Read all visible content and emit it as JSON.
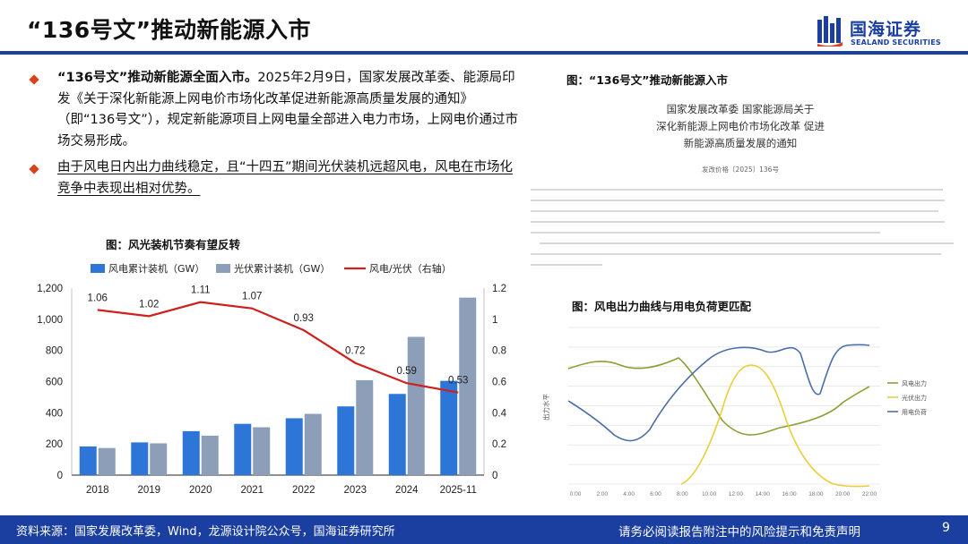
{
  "slide": {
    "title": "“136号文”推动新能源入市",
    "page_number": "9"
  },
  "logo": {
    "cn": "国海证券",
    "en": "SEALAND SECURITIES"
  },
  "bullets": [
    {
      "bold": "“136号文”推动新能源全面入市。",
      "text": "2025年2月9日，国家发展改革委、能源局印发《关于深化新能源上网电价市场化改革促进新能源高质量发展的通知》（即“136号文”），规定新能源项目上网电量全部进入电力市场，上网电价通过市场交易形成。"
    },
    {
      "text": "由于风电日内出力曲线稳定，且“十四五”期间光伏装机远超风电，风电在市场化竞争中表现出相对优势。"
    }
  ],
  "figure1": {
    "title": "图：风光装机节奏有望反转"
  },
  "chart_data": {
    "type": "bar",
    "categories": [
      "2018",
      "2019",
      "2020",
      "2021",
      "2022",
      "2023",
      "2024",
      "2025-11"
    ],
    "series": [
      {
        "name": "风电累计装机（GW）",
        "type": "bar",
        "axis": "left",
        "color": "#2e75d8",
        "values": [
          184,
          210,
          282,
          329,
          365,
          441,
          521,
          605
        ]
      },
      {
        "name": "光伏累计装机（GW）",
        "type": "bar",
        "axis": "left",
        "color": "#8c9eb8",
        "values": [
          174,
          204,
          253,
          307,
          393,
          609,
          887,
          1139
        ]
      },
      {
        "name": "风电/光伏（右轴）",
        "type": "line",
        "axis": "right",
        "color": "#d0201c",
        "values": [
          1.06,
          1.02,
          1.11,
          1.07,
          0.93,
          0.72,
          0.59,
          0.53
        ],
        "labels": [
          "1.06",
          "1.02",
          "1.11",
          "1.07",
          "0.93",
          "0.72",
          "0.59",
          "0.53"
        ]
      }
    ],
    "ylim_left": [
      0,
      1200
    ],
    "yticks_left": [
      "0",
      "200",
      "400",
      "600",
      "800",
      "1,000",
      "1,200"
    ],
    "ylim_right": [
      0,
      1.2
    ],
    "yticks_right": [
      "0",
      "0.2",
      "0.4",
      "0.6",
      "0.8",
      "1",
      "1.2"
    ],
    "legend": "top"
  },
  "document": {
    "figure_title": "图：“136号文”推动新能源入市",
    "heading_lines": [
      "国家发展改革委 国家能源局关于",
      "深化新能源上网电价市场化改革 促进",
      "新能源高质量发展的通知"
    ],
    "doc_number": "发改价格〔2025〕136号"
  },
  "figure2": {
    "title": "图：风电出力曲线与用电负荷更匹配",
    "y_label": "出力水平",
    "x_ticks": [
      "0:00",
      "2:00",
      "4:00",
      "6:00",
      "8:00",
      "10:00",
      "12:00",
      "14:00",
      "16:00",
      "18:00",
      "20:00",
      "22:00"
    ],
    "legend": [
      "风电出力",
      "光伏出力",
      "用电负荷"
    ],
    "colors": {
      "wind": "#8aa033",
      "solar": "#e8cf3a",
      "load": "#4a6ea8",
      "grid": "#e4e4e4"
    }
  },
  "footer": {
    "source": "资料来源：国家发展改革委，Wind，龙源设计院公众号，国海证券研究所",
    "disclaimer": "请务必阅读报告附注中的风险提示和免责声明"
  },
  "theme": {
    "brand": "#1a3fa0",
    "accent": "#d9421b"
  }
}
